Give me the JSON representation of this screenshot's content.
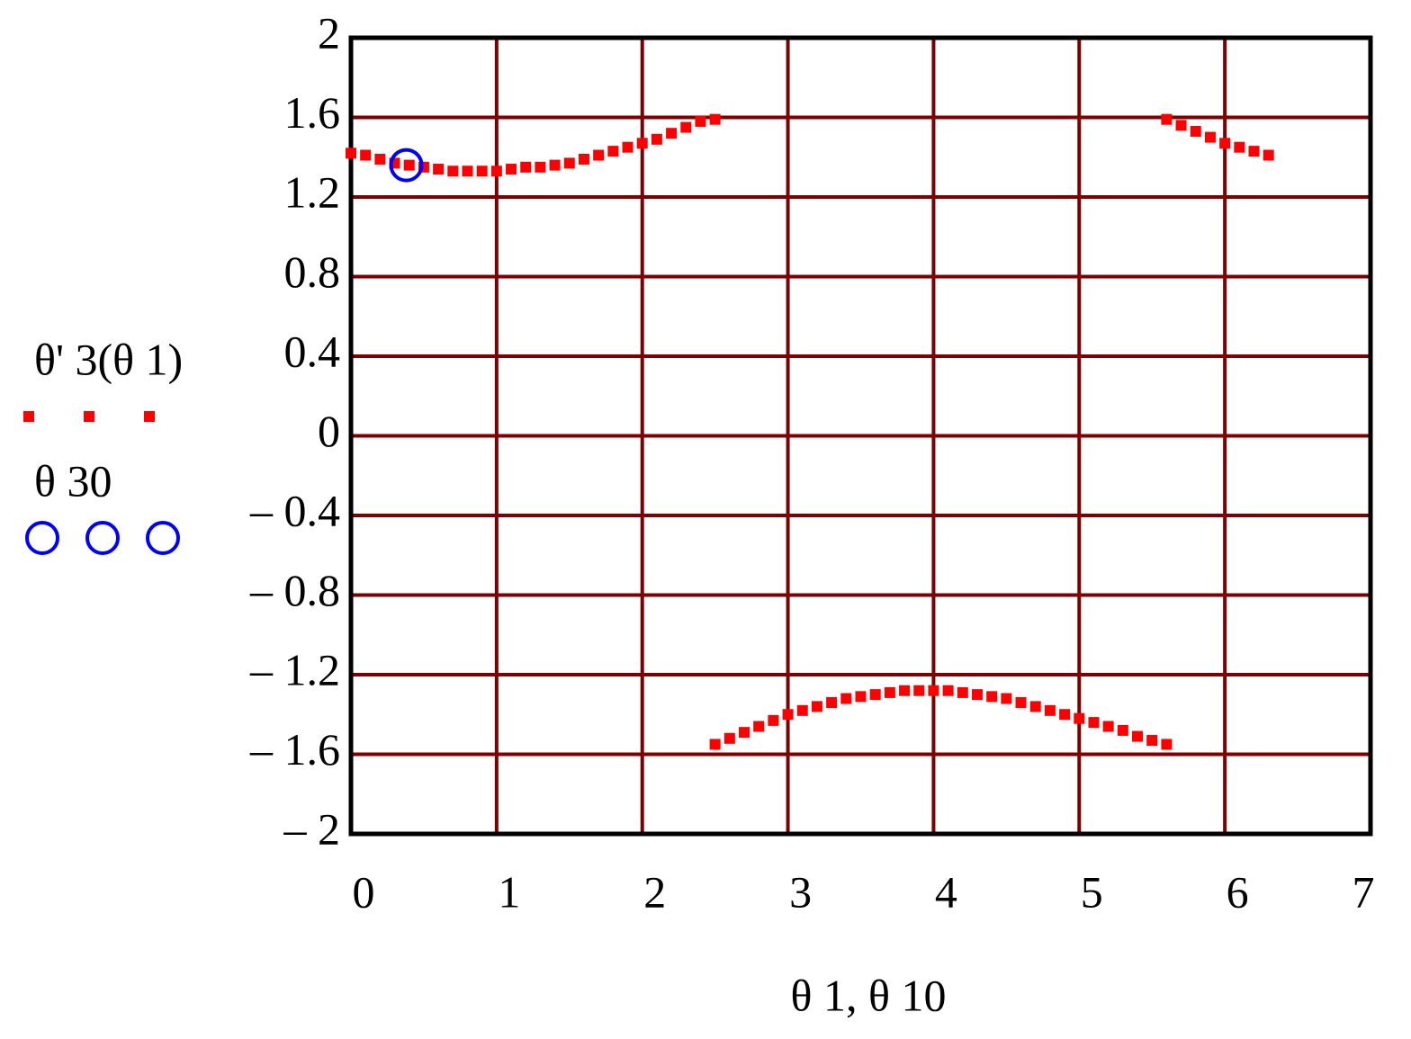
{
  "chart_data": {
    "type": "scatter",
    "x_label": "θ 1, θ 10",
    "xlim": [
      0,
      7
    ],
    "xticks": [
      0,
      1,
      2,
      3,
      4,
      5,
      6,
      7
    ],
    "ylim": [
      -2,
      2
    ],
    "yticks": [
      {
        "value": -2,
        "label": "– 2"
      },
      {
        "value": -1.6,
        "label": "– 1.6"
      },
      {
        "value": -1.2,
        "label": "– 1.2"
      },
      {
        "value": -0.8,
        "label": "– 0.8"
      },
      {
        "value": -0.4,
        "label": "– 0.4"
      },
      0,
      0.4,
      0.8,
      1.2,
      1.6,
      2
    ],
    "grid": true,
    "grid_color": "#7f0000",
    "series": [
      {
        "name": "θ' 3(θ 1)",
        "color": "#ff0000",
        "marker": "square",
        "x": [
          0,
          0.1,
          0.2,
          0.3,
          0.4,
          0.5,
          0.6,
          0.7,
          0.8,
          0.9,
          1.0,
          1.1,
          1.2,
          1.3,
          1.4,
          1.5,
          1.6,
          1.7,
          1.8,
          1.9,
          2.0,
          2.1,
          2.2,
          2.3,
          2.4,
          2.5,
          2.5,
          2.6,
          2.7,
          2.8,
          2.9,
          3.0,
          3.1,
          3.2,
          3.3,
          3.4,
          3.5,
          3.6,
          3.7,
          3.8,
          3.9,
          4.0,
          4.1,
          4.2,
          4.3,
          4.4,
          4.5,
          4.6,
          4.7,
          4.8,
          4.9,
          5.0,
          5.1,
          5.2,
          5.3,
          5.4,
          5.5,
          5.6,
          5.6,
          5.7,
          5.8,
          5.9,
          6.0,
          6.1,
          6.2,
          6.3
        ],
        "values": [
          1.42,
          1.41,
          1.39,
          1.37,
          1.36,
          1.35,
          1.34,
          1.33,
          1.33,
          1.33,
          1.33,
          1.34,
          1.35,
          1.35,
          1.36,
          1.37,
          1.39,
          1.41,
          1.43,
          1.45,
          1.47,
          1.49,
          1.52,
          1.55,
          1.58,
          1.59,
          -1.55,
          -1.52,
          -1.49,
          -1.46,
          -1.43,
          -1.4,
          -1.38,
          -1.36,
          -1.34,
          -1.32,
          -1.31,
          -1.3,
          -1.29,
          -1.28,
          -1.28,
          -1.28,
          -1.28,
          -1.29,
          -1.3,
          -1.31,
          -1.32,
          -1.34,
          -1.36,
          -1.38,
          -1.4,
          -1.42,
          -1.44,
          -1.46,
          -1.48,
          -1.51,
          -1.53,
          -1.55,
          1.59,
          1.56,
          1.53,
          1.5,
          1.47,
          1.45,
          1.43,
          1.41
        ]
      },
      {
        "name": "θ 30",
        "color": "#0000ff",
        "marker": "circle",
        "x": [
          0.38
        ],
        "values": [
          1.36
        ]
      }
    ]
  }
}
